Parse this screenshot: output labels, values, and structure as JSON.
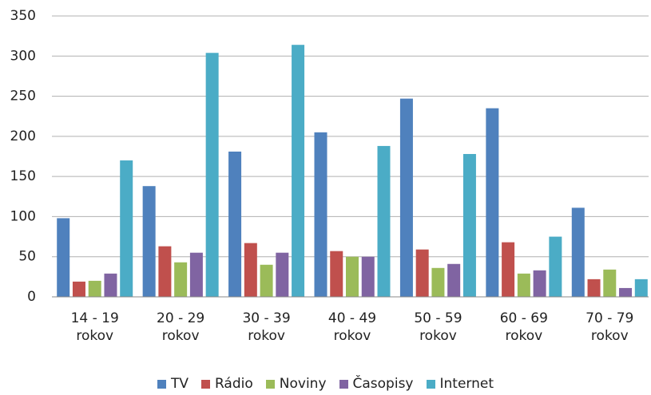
{
  "chart_data": {
    "type": "bar",
    "categories": [
      "14 - 19 rokov",
      "20 - 29 rokov",
      "30 - 39 rokov",
      "40 - 49 rokov",
      "50 - 59 rokov",
      "60 - 69 rokov",
      "70 - 79 rokov"
    ],
    "series": [
      {
        "name": "TV",
        "color": "#4f81bd",
        "values": [
          98,
          138,
          181,
          205,
          247,
          235,
          111
        ]
      },
      {
        "name": "Rádio",
        "color": "#c0504d",
        "values": [
          19,
          63,
          67,
          57,
          59,
          68,
          22
        ]
      },
      {
        "name": "Noviny",
        "color": "#9bbb59",
        "values": [
          20,
          43,
          40,
          50,
          36,
          29,
          34
        ]
      },
      {
        "name": "Časopisy",
        "color": "#8064a2",
        "values": [
          29,
          55,
          55,
          50,
          41,
          33,
          11
        ]
      },
      {
        "name": "Internet",
        "color": "#4bacc6",
        "values": [
          170,
          304,
          314,
          188,
          178,
          75,
          22
        ]
      }
    ],
    "ylim": [
      0,
      350
    ],
    "yticks": [
      0,
      50,
      100,
      150,
      200,
      250,
      300,
      350
    ],
    "grid": true,
    "legend": "bottom"
  }
}
